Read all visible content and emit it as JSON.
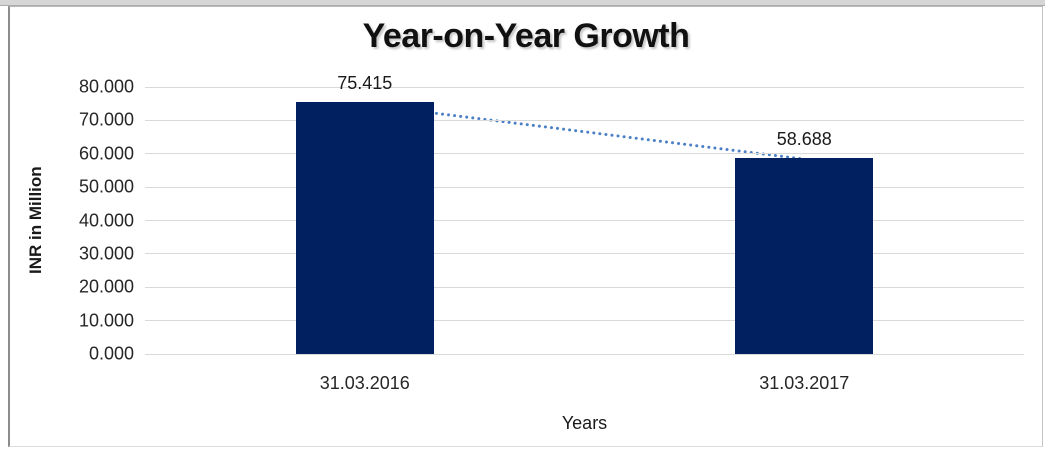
{
  "chart_data": {
    "type": "bar",
    "title": "Year-on-Year Growth",
    "categories": [
      "31.03.2016",
      "31.03.2017"
    ],
    "values": [
      75.415,
      58.688
    ],
    "data_labels": [
      "75.415",
      "58.688"
    ],
    "xlabel": "Years",
    "ylabel": "INR in Million",
    "ylim": [
      0,
      80
    ],
    "ytick_step": 10,
    "yticks": [
      "80.000",
      "70.000",
      "60.000",
      "50.000",
      "40.000",
      "30.000",
      "20.000",
      "10.000",
      "0.000"
    ],
    "grid": "horizontal",
    "legend": "none",
    "colors": {
      "bar": "#002060",
      "trendline": "#4c80c6",
      "gridline": "#d9d9d9",
      "title_text": "#111111",
      "tick_text": "#262626"
    },
    "trendline": {
      "type": "linear",
      "style": "dotted",
      "from_value": 75.415,
      "to_value": 58.688
    }
  }
}
